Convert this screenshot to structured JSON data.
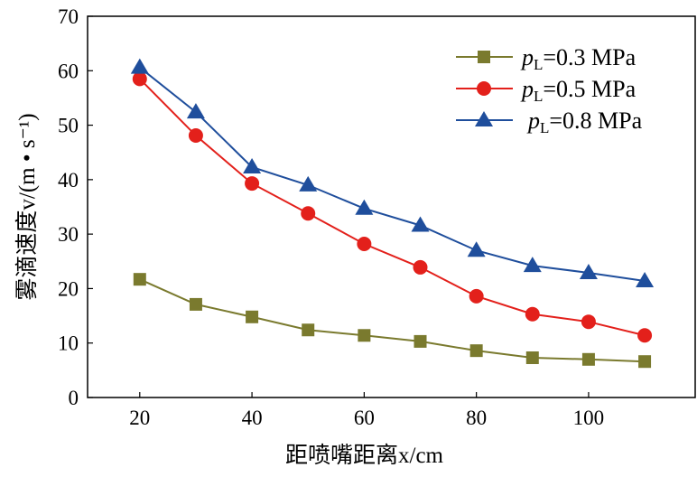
{
  "chart_data": {
    "type": "line",
    "title": "",
    "xlabel": "距喷嘴距离x/cm",
    "ylabel": "雾滴速度v/(m • s⁻¹)",
    "xlim": [
      10.7,
      119
    ],
    "ylim": [
      0,
      70
    ],
    "xticks": [
      20,
      40,
      60,
      80,
      100
    ],
    "yticks": [
      0,
      10,
      20,
      30,
      40,
      50,
      60,
      70
    ],
    "grid": false,
    "legend_position": "top-right",
    "x": [
      20,
      30,
      40,
      50,
      60,
      70,
      80,
      90,
      100,
      110
    ],
    "series": [
      {
        "name": "pL=0.3 MPa",
        "p": "p",
        "sub": "L",
        "rest": "=0.3 MPa",
        "color": "#7a7a2e",
        "marker": "square",
        "values": [
          21.7,
          17.1,
          14.8,
          12.4,
          11.4,
          10.3,
          8.6,
          7.3,
          7.0,
          6.6
        ]
      },
      {
        "name": "pL=0.5 MPa",
        "p": "p",
        "sub": "L",
        "rest": "=0.5 MPa",
        "color": "#e3201b",
        "marker": "circle",
        "values": [
          58.5,
          48.1,
          39.3,
          33.8,
          28.2,
          23.9,
          18.6,
          15.3,
          13.9,
          11.4
        ]
      },
      {
        "name": "pL=0.8 MPa",
        "p": "p",
        "sub": "L",
        "rest": "=0.8 MPa",
        "color": "#1f4e9c",
        "marker": "triangle",
        "values": [
          60.6,
          52.4,
          42.3,
          39.0,
          34.7,
          31.6,
          27.0,
          24.2,
          22.9,
          21.4
        ]
      }
    ]
  }
}
